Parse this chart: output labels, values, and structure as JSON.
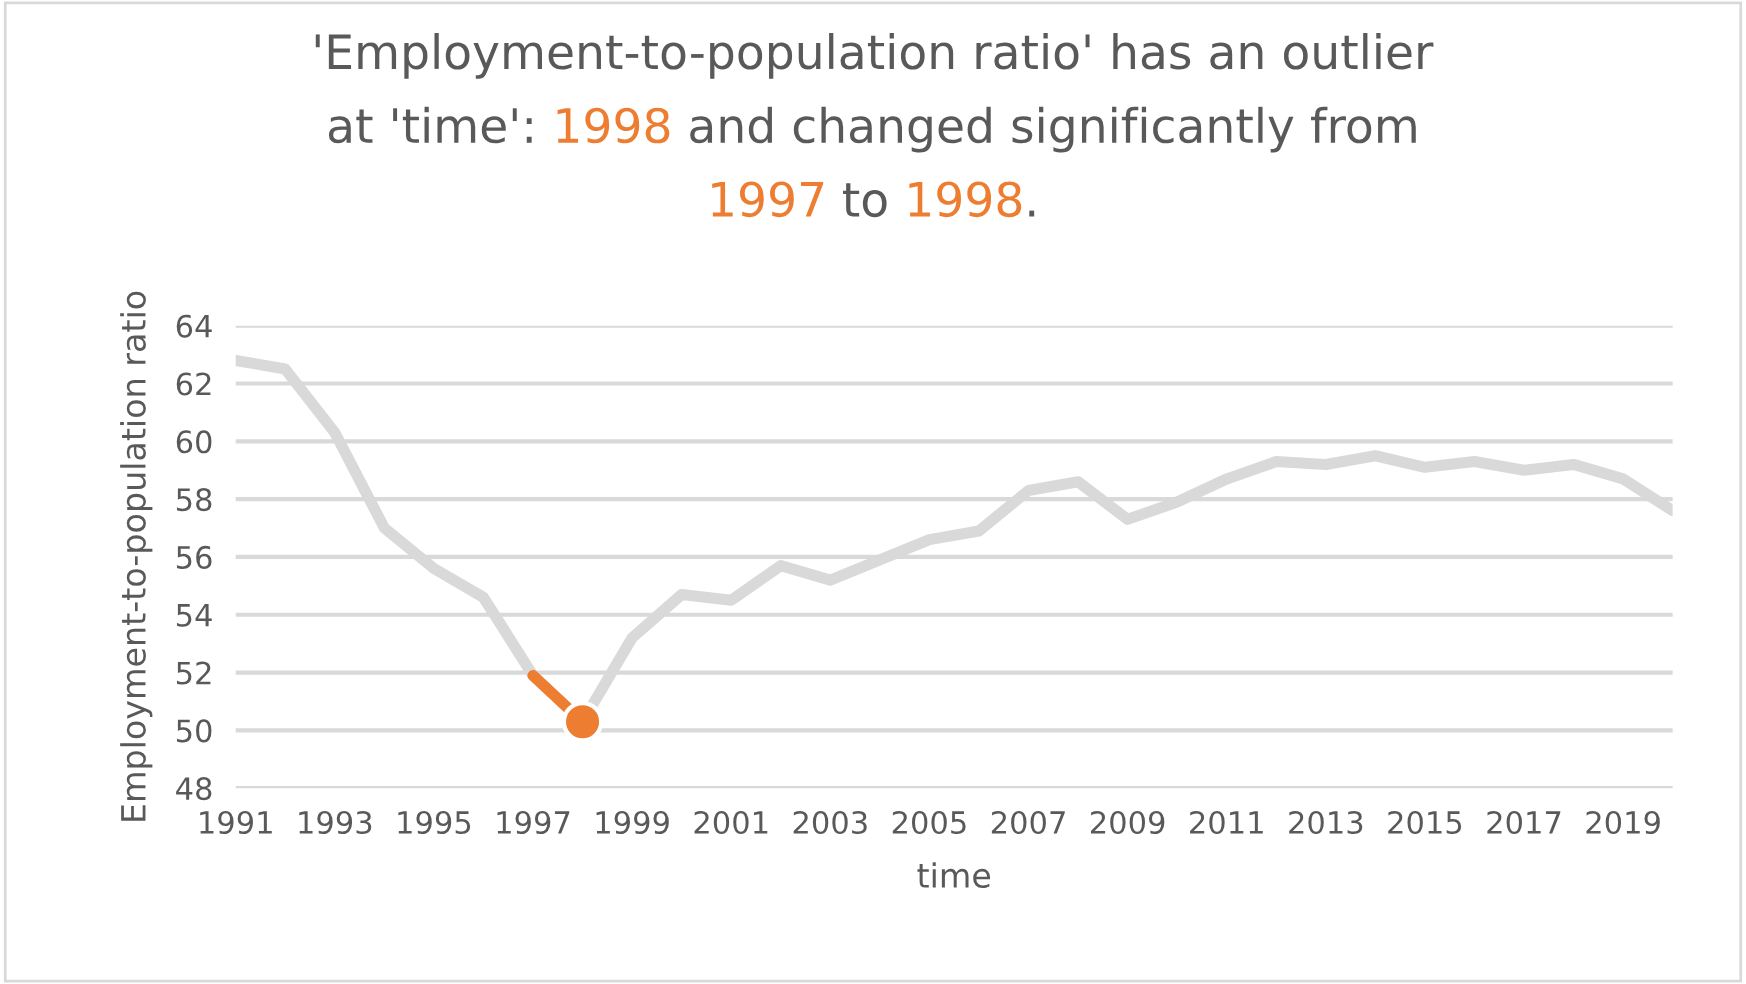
{
  "chart_data": {
    "type": "line",
    "title": "'Employment-to-population ratio' has an outlier\nat 'time': 1998 and changed significantly from\n1997 to 1998.",
    "xlabel": "time",
    "ylabel": "Employment-to-population ratio",
    "x": [
      1991,
      1992,
      1993,
      1994,
      1995,
      1996,
      1997,
      1998,
      1999,
      2000,
      2001,
      2002,
      2003,
      2004,
      2005,
      2006,
      2007,
      2008,
      2009,
      2010,
      2011,
      2012,
      2013,
      2014,
      2015,
      2016,
      2017,
      2018,
      2019,
      2020
    ],
    "series": [
      {
        "color": "#d9d9d9",
        "values": [
          62.8,
          62.5,
          60.3,
          57.0,
          55.6,
          54.6,
          51.9,
          50.3,
          53.2,
          54.7,
          54.5,
          55.7,
          55.2,
          55.9,
          56.6,
          56.9,
          58.3,
          58.6,
          57.3,
          57.9,
          58.7,
          59.3,
          59.2,
          59.5,
          59.1,
          59.3,
          59.0,
          59.2,
          58.7,
          57.6
        ]
      },
      {
        "color": "#ed7d31",
        "x": [
          1997,
          1998
        ],
        "values": [
          51.9,
          50.3
        ]
      },
      {
        "type": "scatter",
        "color": "#ed7d31",
        "marker": "circle",
        "x": [
          1998
        ],
        "values": [
          50.3
        ]
      }
    ],
    "xlim": [
      1991,
      2020
    ],
    "xticks": [
      1991,
      1993,
      1995,
      1997,
      1999,
      2001,
      2003,
      2005,
      2007,
      2009,
      2011,
      2013,
      2015,
      2017,
      2019
    ],
    "ylim": [
      48,
      64
    ],
    "yticks": [
      48,
      50,
      52,
      54,
      56,
      58,
      60,
      62,
      64
    ],
    "grid": "y"
  }
}
